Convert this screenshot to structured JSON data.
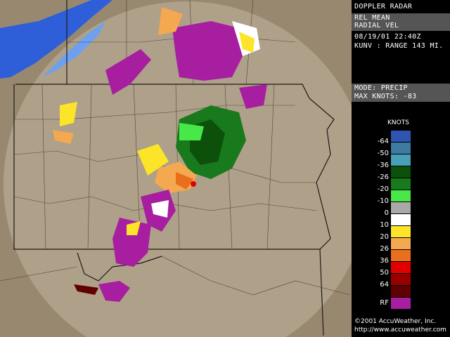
{
  "header": {
    "title": "DOPPLER RADAR"
  },
  "product": {
    "line1": "REL MEAN",
    "line2": "RADIAL VEL"
  },
  "timestamp": "08/19/01  22:40Z",
  "station": "KUNV :  RANGE 143 MI.",
  "mode": "MODE: PRECIP",
  "max_knots": "MAX KNOTS: -83",
  "legend": {
    "title": "KNOTS",
    "colors": [
      "#2f55b0",
      "#3f7aa0",
      "#48a0b8",
      "#0c500c",
      "#187a1c",
      "#48e848",
      "#a8a8a8",
      "#ffffff",
      "#fce428",
      "#f4a850",
      "#e8701c",
      "#e00000",
      "#980000",
      "#600000",
      "#a81ea0"
    ],
    "labels": [
      "-64",
      "-50",
      "-36",
      "-26",
      "-20",
      "-10",
      "0",
      "10",
      "20",
      "26",
      "36",
      "50",
      "64",
      "RF"
    ]
  },
  "footer": {
    "copyright": "©2001 AccuWeather, Inc.",
    "url": "http://www.accuweather.com"
  },
  "map": {
    "land_color": "#988870",
    "range_color": "#b3a58e",
    "water_color": "#2f5fd8",
    "lit_water_color": "#6ea0f0",
    "boundary_color": "#3a3028"
  }
}
